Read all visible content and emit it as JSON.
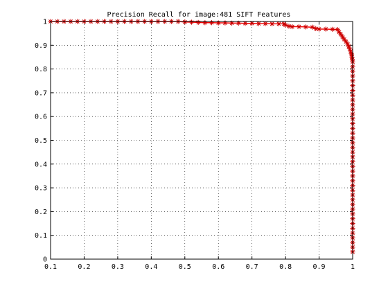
{
  "chart_data": {
    "type": "line",
    "title": "Precision Recall for image:481 SIFT Features",
    "xlabel": "",
    "ylabel": "",
    "xlim": [
      0.1,
      1
    ],
    "ylim": [
      0,
      1
    ],
    "x_ticks": [
      "0.1",
      "0.2",
      "0.3",
      "0.4",
      "0.5",
      "0.6",
      "0.7",
      "0.8",
      "0.9",
      "1"
    ],
    "y_ticks": [
      "0",
      "0.1",
      "0.2",
      "0.3",
      "0.4",
      "0.5",
      "0.6",
      "0.7",
      "0.8",
      "0.9",
      "1"
    ],
    "grid": true,
    "line_color": "#ff0000",
    "marker_color": "#cc0000",
    "marker": "asterisk",
    "series": [
      {
        "x": [
          0.1,
          0.12,
          0.14,
          0.16,
          0.18,
          0.2,
          0.22,
          0.24,
          0.26,
          0.28,
          0.3,
          0.32,
          0.34,
          0.36,
          0.38,
          0.4,
          0.42,
          0.44,
          0.46,
          0.48,
          0.5,
          0.52,
          0.54,
          0.56,
          0.58,
          0.6,
          0.62,
          0.64,
          0.66,
          0.68,
          0.7,
          0.72,
          0.74,
          0.76,
          0.78,
          0.795,
          0.8,
          0.81,
          0.82,
          0.84,
          0.86,
          0.88,
          0.89,
          0.9,
          0.92,
          0.94,
          0.955,
          0.96,
          0.965,
          0.97,
          0.975,
          0.98,
          0.985,
          0.988,
          0.991,
          0.994,
          0.996,
          0.997,
          0.998,
          0.999,
          1.0,
          1.0,
          1.0,
          1.0,
          1.0,
          1.0,
          1.0,
          1.0,
          1.0,
          1.0,
          1.0,
          1.0,
          1.0,
          1.0,
          1.0,
          1.0,
          1.0,
          1.0,
          1.0,
          1.0,
          1.0,
          1.0,
          1.0,
          1.0,
          1.0,
          1.0,
          1.0,
          1.0,
          1.0,
          1.0,
          1.0,
          1.0,
          1.0,
          1.0,
          1.0,
          1.0,
          1.0,
          1.0,
          1.0,
          1.0,
          1.0
        ],
        "y": [
          1.0,
          1.0,
          1.0,
          1.0,
          1.0,
          1.0,
          1.0,
          1.0,
          1.0,
          1.0,
          1.0,
          1.0,
          1.0,
          1.0,
          1.0,
          1.0,
          1.0,
          1.0,
          1.0,
          1.0,
          0.998,
          0.997,
          0.996,
          0.995,
          0.995,
          0.994,
          0.994,
          0.993,
          0.993,
          0.992,
          0.992,
          0.991,
          0.991,
          0.99,
          0.99,
          0.99,
          0.985,
          0.98,
          0.978,
          0.978,
          0.977,
          0.976,
          0.97,
          0.968,
          0.968,
          0.967,
          0.966,
          0.955,
          0.945,
          0.935,
          0.925,
          0.915,
          0.905,
          0.895,
          0.885,
          0.875,
          0.865,
          0.86,
          0.85,
          0.84,
          0.83,
          0.81,
          0.79,
          0.77,
          0.75,
          0.73,
          0.71,
          0.69,
          0.67,
          0.65,
          0.63,
          0.61,
          0.59,
          0.57,
          0.55,
          0.53,
          0.51,
          0.49,
          0.47,
          0.45,
          0.43,
          0.41,
          0.39,
          0.37,
          0.35,
          0.33,
          0.31,
          0.29,
          0.27,
          0.25,
          0.23,
          0.21,
          0.19,
          0.17,
          0.15,
          0.13,
          0.11,
          0.09,
          0.07,
          0.05,
          0.03
        ]
      }
    ]
  }
}
